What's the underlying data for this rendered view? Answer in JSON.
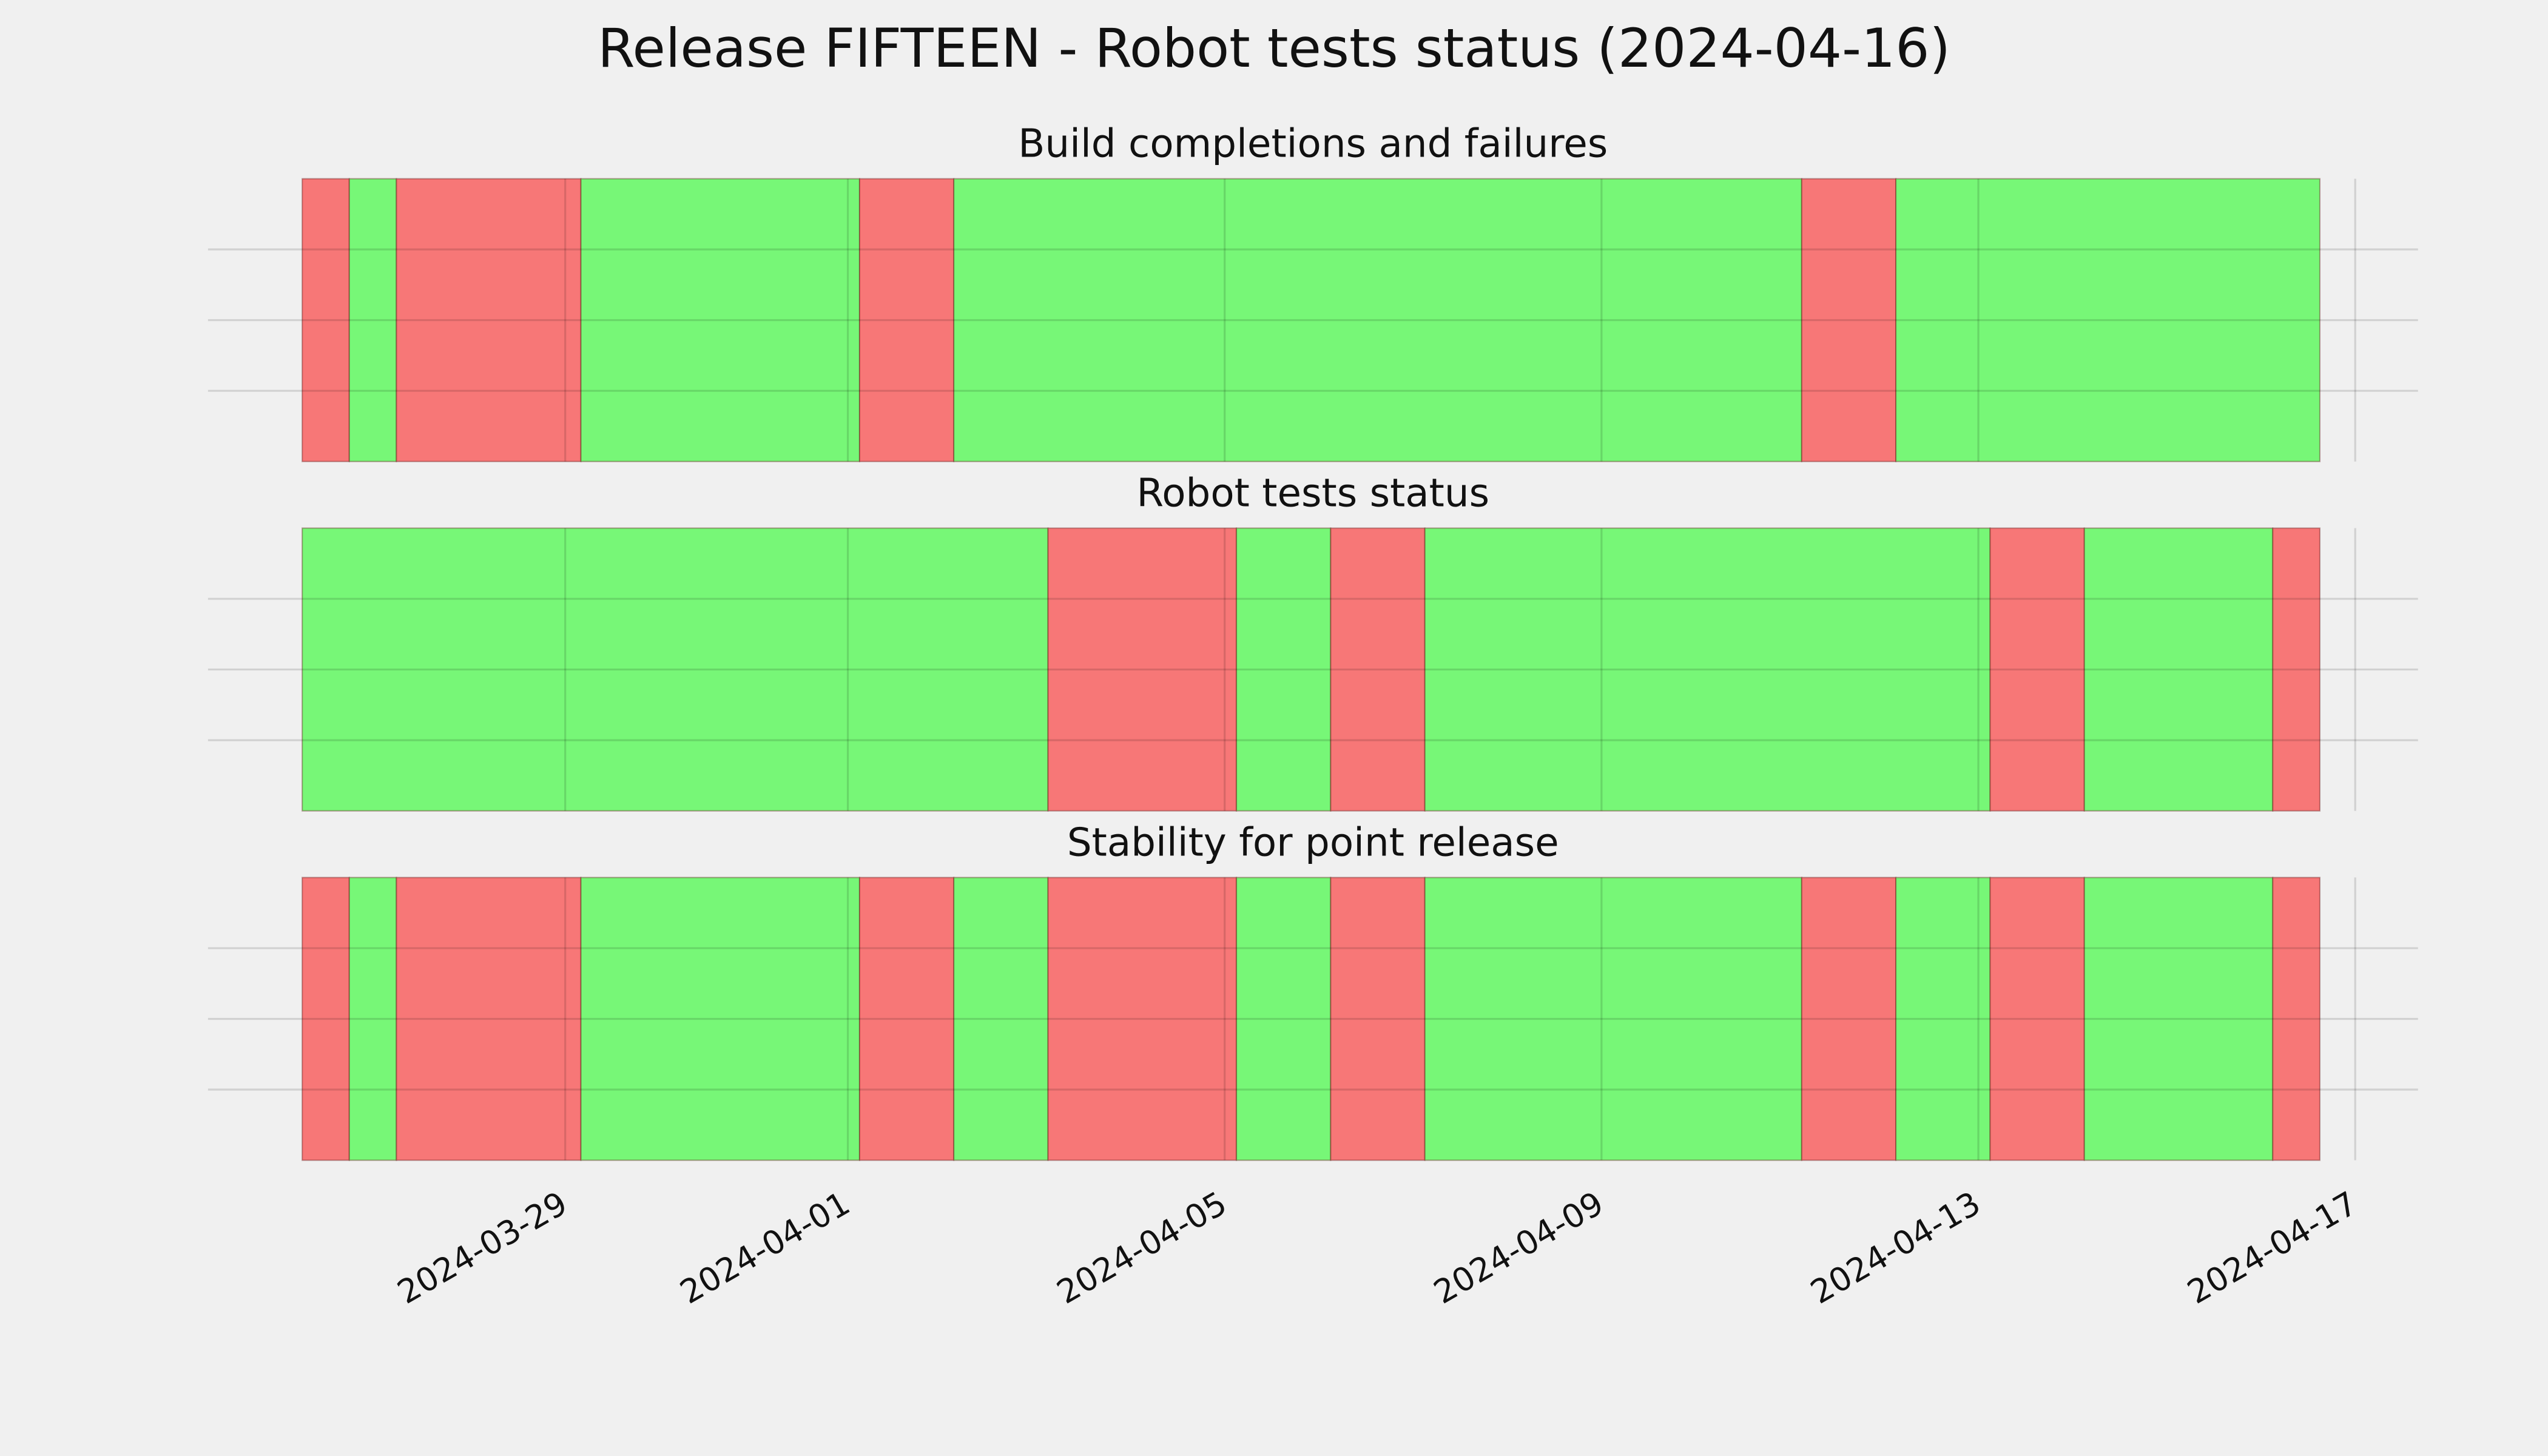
{
  "title": "Release FIFTEEN - Robot tests status (2024-04-16)",
  "chart_data": [
    {
      "type": "timeline",
      "title": "Build completions and failures",
      "spans": [
        {
          "start": "2024-03-26T05:00",
          "end": "2024-03-26T17:00",
          "color": "#f77777"
        },
        {
          "start": "2024-03-26T17:00",
          "end": "2024-03-27T05:00",
          "color": "#77f777"
        },
        {
          "start": "2024-03-27T05:00",
          "end": "2024-03-29T04:00",
          "color": "#f77777"
        },
        {
          "start": "2024-03-29T04:00",
          "end": "2024-04-01T03:00",
          "color": "#77f777"
        },
        {
          "start": "2024-04-01T03:00",
          "end": "2024-04-02T03:00",
          "color": "#f77777"
        },
        {
          "start": "2024-04-02T03:00",
          "end": "2024-04-11T03:00",
          "color": "#77f777"
        },
        {
          "start": "2024-04-11T03:00",
          "end": "2024-04-12T03:00",
          "color": "#f77777"
        },
        {
          "start": "2024-04-12T03:00",
          "end": "2024-04-16T15:00",
          "color": "#77f777"
        }
      ]
    },
    {
      "type": "timeline",
      "title": "Robot tests status",
      "spans": [
        {
          "start": "2024-03-26T05:00",
          "end": "2024-04-03T03:00",
          "color": "#77f777"
        },
        {
          "start": "2024-04-03T03:00",
          "end": "2024-04-05T03:00",
          "color": "#f77777"
        },
        {
          "start": "2024-04-05T03:00",
          "end": "2024-04-06T03:00",
          "color": "#77f777"
        },
        {
          "start": "2024-04-06T03:00",
          "end": "2024-04-07T03:00",
          "color": "#f77777"
        },
        {
          "start": "2024-04-07T03:00",
          "end": "2024-04-13T03:00",
          "color": "#77f777"
        },
        {
          "start": "2024-04-13T03:00",
          "end": "2024-04-14T03:00",
          "color": "#f77777"
        },
        {
          "start": "2024-04-14T03:00",
          "end": "2024-04-16T03:00",
          "color": "#77f777"
        },
        {
          "start": "2024-04-16T03:00",
          "end": "2024-04-16T15:00",
          "color": "#f77777"
        }
      ]
    },
    {
      "type": "timeline",
      "title": "Stability for point release",
      "xlim": [
        "2024-03-25T05:00",
        "2024-04-17T16:00"
      ],
      "xticks": [
        "2024-03-29",
        "2024-04-01",
        "2024-04-05",
        "2024-04-09",
        "2024-04-13",
        "2024-04-17"
      ],
      "spans": [
        {
          "start": "2024-03-26T05:00",
          "end": "2024-03-26T17:00",
          "color": "#f77777"
        },
        {
          "start": "2024-03-26T17:00",
          "end": "2024-03-27T05:00",
          "color": "#77f777"
        },
        {
          "start": "2024-03-27T05:00",
          "end": "2024-03-29T04:00",
          "color": "#f77777"
        },
        {
          "start": "2024-03-29T04:00",
          "end": "2024-04-01T03:00",
          "color": "#77f777"
        },
        {
          "start": "2024-04-01T03:00",
          "end": "2024-04-02T03:00",
          "color": "#f77777"
        },
        {
          "start": "2024-04-02T03:00",
          "end": "2024-04-03T03:00",
          "color": "#77f777"
        },
        {
          "start": "2024-04-03T03:00",
          "end": "2024-04-05T03:00",
          "color": "#f77777"
        },
        {
          "start": "2024-04-05T03:00",
          "end": "2024-04-06T03:00",
          "color": "#77f777"
        },
        {
          "start": "2024-04-06T03:00",
          "end": "2024-04-07T03:00",
          "color": "#f77777"
        },
        {
          "start": "2024-04-07T03:00",
          "end": "2024-04-11T03:00",
          "color": "#77f777"
        },
        {
          "start": "2024-04-11T03:00",
          "end": "2024-04-12T03:00",
          "color": "#f77777"
        },
        {
          "start": "2024-04-12T03:00",
          "end": "2024-04-13T03:00",
          "color": "#77f777"
        },
        {
          "start": "2024-04-13T03:00",
          "end": "2024-04-14T03:00",
          "color": "#f77777"
        },
        {
          "start": "2024-04-14T03:00",
          "end": "2024-04-16T03:00",
          "color": "#77f777"
        },
        {
          "start": "2024-04-16T03:00",
          "end": "2024-04-16T15:00",
          "color": "#f77777"
        }
      ]
    }
  ]
}
